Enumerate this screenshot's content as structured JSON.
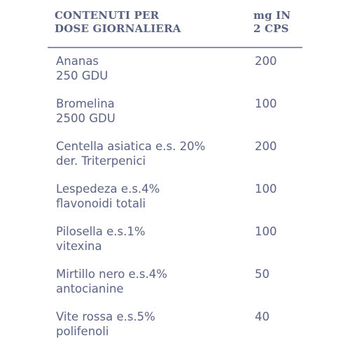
{
  "header": {
    "col1": "CONTENUTI PER\nDOSE GIORNALIERA",
    "col2": "mg IN\n2 CPS"
  },
  "rows": [
    {
      "name": "Ananas\n250 GDU",
      "value": "200"
    },
    {
      "name": "Bromelina\n2500 GDU",
      "value": "100"
    },
    {
      "name": "Centella asiatica e.s. 20%\nder. Triterpenici",
      "value": "200"
    },
    {
      "name": "Lespedeza e.s.4%\nflavonoidi totali",
      "value": "100"
    },
    {
      "name": "Pilosella e.s.1%\nvitexina",
      "value": "100"
    },
    {
      "name": "Mirtillo nero e.s.4%\nantocianine",
      "value": "50"
    },
    {
      "name": "Vite rossa e.s.5%\npolifenoli",
      "value": "40"
    }
  ]
}
